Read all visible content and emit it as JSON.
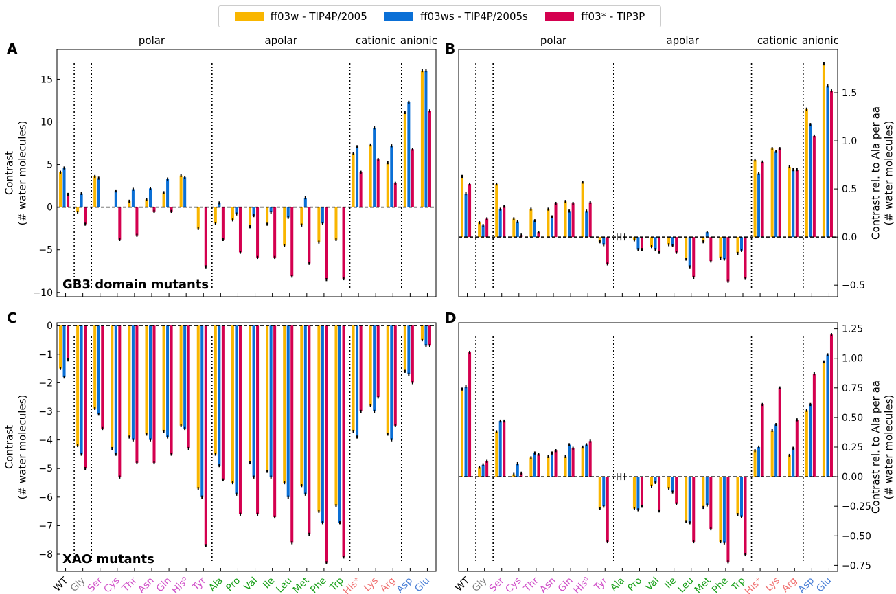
{
  "legend": [
    {
      "label": "ff03w - TIP4P/2005",
      "color": "#f9b600"
    },
    {
      "label": "ff03ws - TIP4P/2005s",
      "color": "#0a6fd6"
    },
    {
      "label": "ff03* - TIP3P",
      "color": "#d4004f"
    }
  ],
  "categories": [
    "WT",
    "Gly",
    "Ser",
    "Cys",
    "Thr",
    "Asn",
    "Gln",
    "His⁰",
    "Tyr",
    "Ala",
    "Pro",
    "Val",
    "Ile",
    "Leu",
    "Met",
    "Phe",
    "Trp",
    "His⁺",
    "Lys",
    "Arg",
    "Asp",
    "Glu"
  ],
  "category_colors": [
    "#000000",
    "#7f7f7f",
    "#d050c8",
    "#d050c8",
    "#d050c8",
    "#d050c8",
    "#d050c8",
    "#d050c8",
    "#d050c8",
    "#1aa01a",
    "#1aa01a",
    "#1aa01a",
    "#1aa01a",
    "#1aa01a",
    "#1aa01a",
    "#1aa01a",
    "#1aa01a",
    "#f07070",
    "#f07070",
    "#f07070",
    "#4a7fd6",
    "#4a7fd6"
  ],
  "group_labels": [
    "polar",
    "apolar",
    "cationic",
    "anionic"
  ],
  "chart_data": [
    {
      "panel": "A",
      "type": "bar",
      "annotation": "GB3 domain mutants",
      "ylabel": "Contrast\n(# water molecules)",
      "ylim": [
        -10.5,
        18.5
      ],
      "yticks": [
        -10,
        -5,
        0,
        5,
        10,
        15
      ],
      "series": [
        {
          "name": "ff03w - TIP4P/2005",
          "values": [
            4.1,
            -0.6,
            3.6,
            0,
            0.7,
            0.9,
            1.7,
            3.7,
            -2.5,
            -1.9,
            -1.5,
            -2.3,
            -2.0,
            -4.5,
            -2.1,
            -4.1,
            -3.8,
            6.3,
            7.3,
            5.2,
            11.1,
            16.0
          ]
        },
        {
          "name": "ff03ws - TIP4P/2005s",
          "values": [
            4.6,
            1.6,
            3.4,
            1.9,
            2.1,
            2.2,
            3.3,
            3.5,
            0,
            0.5,
            -0.8,
            -1.0,
            -0.6,
            -1.2,
            1.1,
            -1.9,
            0,
            7.1,
            9.3,
            7.2,
            12.3,
            16.0
          ]
        },
        {
          "name": "ff03* - TIP3P",
          "values": [
            1.5,
            -2.0,
            0,
            -3.8,
            -3.3,
            -0.5,
            -0.5,
            0,
            -7.0,
            -3.8,
            -5.3,
            -5.9,
            -5.9,
            -8.1,
            -6.6,
            -8.5,
            -8.4,
            4.1,
            5.6,
            2.8,
            6.8,
            11.3
          ]
        }
      ]
    },
    {
      "panel": "B",
      "type": "bar",
      "ylabel": "Contrast rel. to Ala per aa\n(# water molecules)",
      "ylim": [
        -0.62,
        1.95
      ],
      "yticks": [
        -0.5,
        0.0,
        0.5,
        1.0,
        1.5
      ],
      "series": [
        {
          "name": "ff03w - TIP4P/2005",
          "values": [
            0.63,
            0.15,
            0.55,
            0.19,
            0.29,
            0.29,
            0.37,
            0.57,
            -0.05,
            0,
            -0.03,
            -0.1,
            -0.08,
            -0.23,
            -0.05,
            -0.22,
            -0.17,
            0.8,
            0.92,
            0.73,
            1.33,
            1.8
          ]
        },
        {
          "name": "ff03ws - TIP4P/2005s",
          "values": [
            0.45,
            0.12,
            0.29,
            0.16,
            0.17,
            0.21,
            0.27,
            0.27,
            -0.08,
            0,
            -0.13,
            -0.13,
            -0.09,
            -0.31,
            0.05,
            -0.23,
            -0.14,
            0.66,
            0.89,
            0.7,
            1.17,
            1.57
          ]
        },
        {
          "name": "ff03* - TIP3P",
          "values": [
            0.55,
            0.19,
            0.32,
            0.02,
            0.05,
            0.35,
            0.35,
            0.36,
            -0.28,
            0,
            -0.13,
            -0.16,
            -0.16,
            -0.42,
            -0.25,
            -0.46,
            -0.43,
            0.78,
            0.92,
            0.7,
            1.05,
            1.52
          ]
        }
      ]
    },
    {
      "panel": "C",
      "type": "bar",
      "annotation": "XAO mutants",
      "ylabel": "Contrast\n(# water molecules)",
      "ylim": [
        -8.6,
        0.1
      ],
      "yticks": [
        -8,
        -7,
        -6,
        -5,
        -4,
        -3,
        -2,
        -1,
        0
      ],
      "series": [
        {
          "name": "ff03w - TIP4P/2005",
          "values": [
            -1.5,
            -4.2,
            -2.9,
            -4.3,
            -3.9,
            -3.8,
            -3.7,
            -3.5,
            -5.7,
            -4.5,
            -5.5,
            -4.8,
            -5.1,
            -5.5,
            -5.6,
            -6.5,
            -6.3,
            -3.7,
            -2.8,
            -3.8,
            -1.6,
            -0.5
          ]
        },
        {
          "name": "ff03ws - TIP4P/2005s",
          "values": [
            -1.8,
            -4.5,
            -3.1,
            -4.5,
            -4.0,
            -4.0,
            -3.9,
            -3.6,
            -6.0,
            -4.9,
            -5.9,
            -5.3,
            -5.3,
            -6.0,
            -5.9,
            -6.9,
            -6.9,
            -3.9,
            -3.0,
            -4.0,
            -1.7,
            -0.7
          ]
        },
        {
          "name": "ff03* - TIP3P",
          "values": [
            -1.2,
            -5.0,
            -3.6,
            -5.3,
            -4.8,
            -4.8,
            -4.5,
            -4.3,
            -7.7,
            -5.4,
            -6.6,
            -6.6,
            -6.7,
            -7.6,
            -7.3,
            -8.3,
            -8.1,
            -3.0,
            -2.5,
            -3.5,
            -2.0,
            -0.7
          ]
        }
      ]
    },
    {
      "panel": "D",
      "type": "bar",
      "ylabel": "Contrast rel. to Ala per aa\n(# water molecules)",
      "ylim": [
        -0.8,
        1.3
      ],
      "yticks": [
        -0.75,
        -0.5,
        -0.25,
        0.0,
        0.25,
        0.5,
        0.75,
        1.0,
        1.25
      ],
      "series": [
        {
          "name": "ff03w - TIP4P/2005",
          "values": [
            0.74,
            0.08,
            0.38,
            0.02,
            0.16,
            0.17,
            0.17,
            0.25,
            -0.27,
            0,
            -0.27,
            -0.08,
            -0.1,
            -0.38,
            -0.26,
            -0.55,
            -0.32,
            0.22,
            0.39,
            0.18,
            0.56,
            0.97
          ]
        },
        {
          "name": "ff03ws - TIP4P/2005s",
          "values": [
            0.76,
            0.1,
            0.47,
            0.11,
            0.2,
            0.2,
            0.27,
            0.27,
            -0.25,
            0,
            -0.28,
            -0.05,
            -0.13,
            -0.39,
            -0.24,
            -0.56,
            -0.34,
            0.25,
            0.44,
            0.24,
            0.61,
            1.03
          ]
        },
        {
          "name": "ff03* - TIP3P",
          "values": [
            1.05,
            0.13,
            0.47,
            0.03,
            0.19,
            0.22,
            0.24,
            0.3,
            -0.55,
            0,
            -0.25,
            -0.29,
            -0.23,
            -0.55,
            -0.44,
            -0.72,
            -0.66,
            0.61,
            0.75,
            0.48,
            0.87,
            1.2
          ]
        }
      ]
    }
  ]
}
